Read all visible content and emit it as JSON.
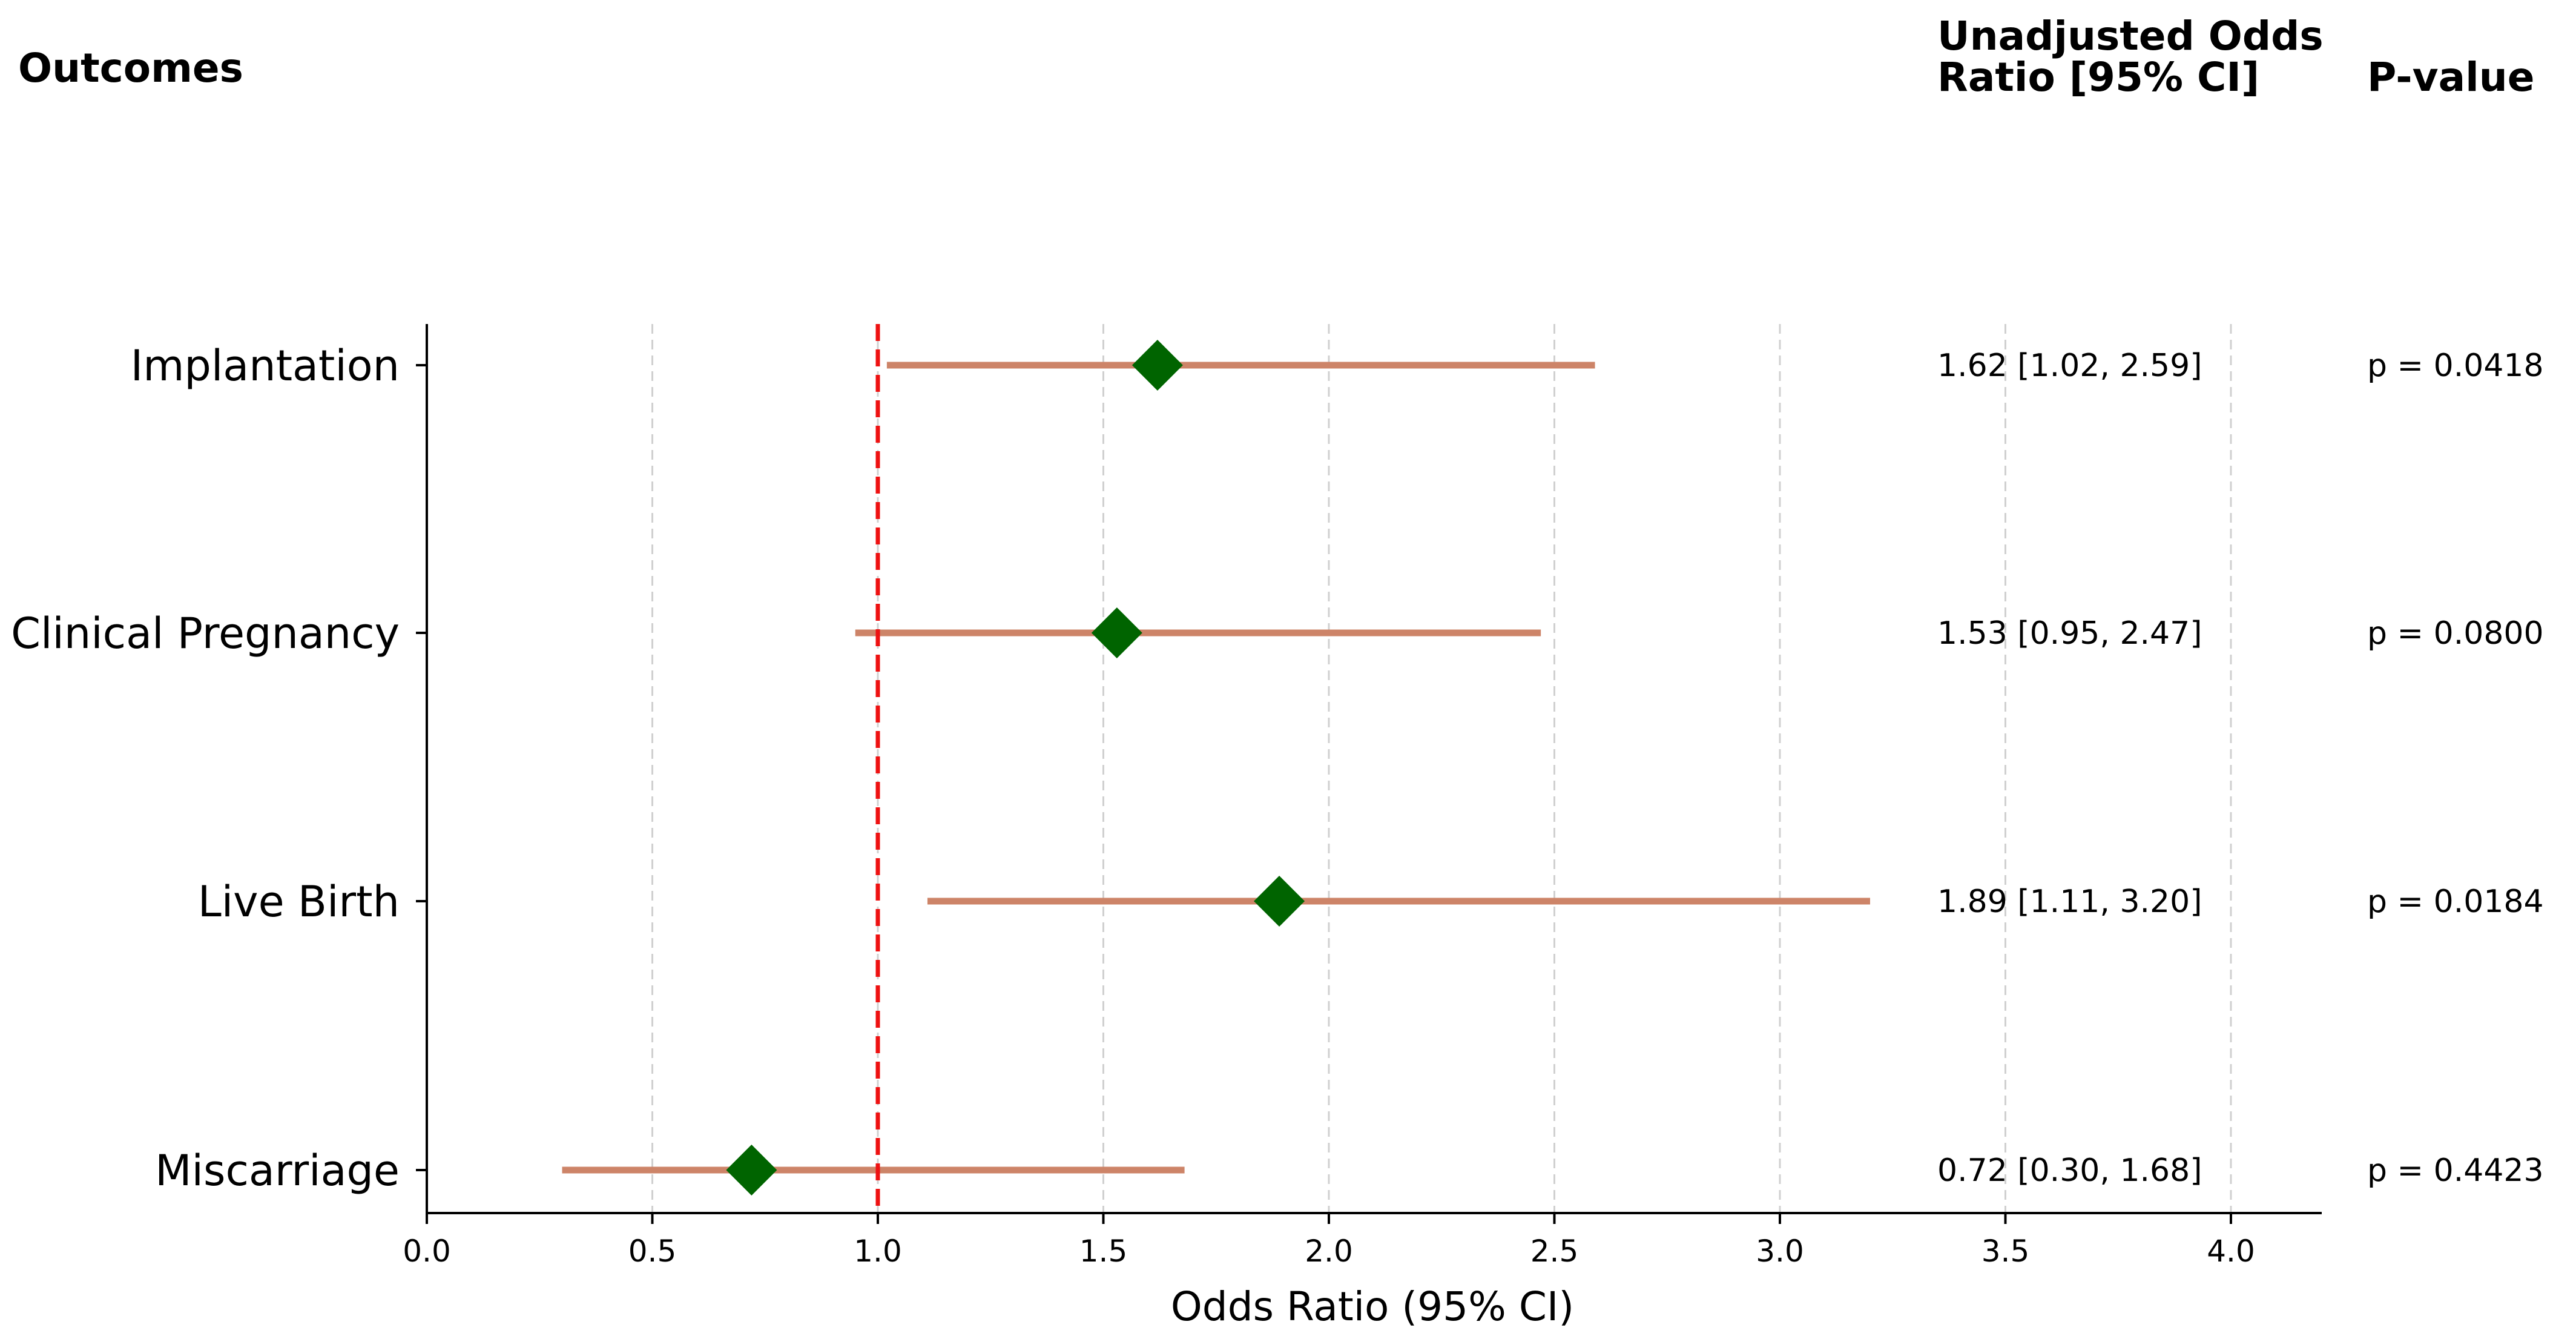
{
  "headers": {
    "outcomes": "Outcomes",
    "or_line1": "Unadjusted Odds",
    "or_line2": "Ratio [95% CI]",
    "pvalue": "P-value"
  },
  "chart_data": {
    "type": "scatter",
    "subtype": "forest-plot",
    "title": "",
    "xlabel": "Odds Ratio (95% CI)",
    "ylabel": "",
    "xlim": [
      0.0,
      4.2
    ],
    "xticks": [
      "0.0",
      "0.5",
      "1.0",
      "1.5",
      "2.0",
      "2.5",
      "3.0",
      "3.5",
      "4.0"
    ],
    "reference_line": 1.0,
    "grid": "vertical dashed",
    "colors": {
      "marker": "#006400",
      "ci_line": "#cd8468",
      "reference_line": "#ee1111",
      "grid": "#d0d0d0"
    },
    "rows": [
      {
        "outcome": "Implantation",
        "or": 1.62,
        "lower": 1.02,
        "upper": 2.59,
        "or_text": "1.62 [1.02, 2.59]",
        "p_text": "p = 0.0418"
      },
      {
        "outcome": "Clinical Pregnancy",
        "or": 1.53,
        "lower": 0.95,
        "upper": 2.47,
        "or_text": "1.53 [0.95, 2.47]",
        "p_text": "p = 0.0800"
      },
      {
        "outcome": "Live Birth",
        "or": 1.89,
        "lower": 1.11,
        "upper": 3.2,
        "or_text": "1.89 [1.11, 3.20]",
        "p_text": "p = 0.0184"
      },
      {
        "outcome": "Miscarriage",
        "or": 0.72,
        "lower": 0.3,
        "upper": 1.68,
        "or_text": "0.72 [0.30, 1.68]",
        "p_text": "p = 0.4423"
      }
    ]
  }
}
